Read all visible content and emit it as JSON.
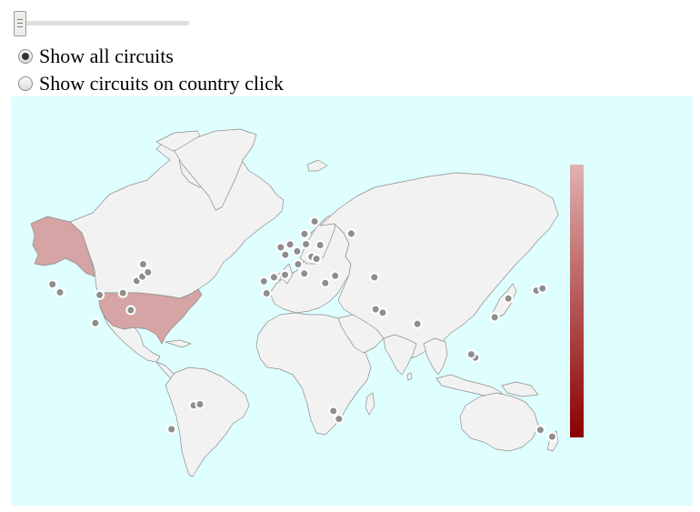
{
  "controls": {
    "slider_value": 0,
    "radios": [
      {
        "label": "Show all circuits",
        "checked": true
      },
      {
        "label": "Show circuits on country click",
        "checked": false
      }
    ]
  },
  "map": {
    "projection": "mercator",
    "ocean_color": "#dffefe",
    "land_color": "#f2f2f2",
    "highlighted_countries": [
      {
        "name": "United States",
        "color": "#d6a4a4"
      }
    ],
    "legend": {
      "from_color": "#e0b1b1",
      "to_color": "#8b0000",
      "orientation": "vertical"
    },
    "circuit_markers": [
      {
        "region": "USA West",
        "lon": -122,
        "lat": 37.5
      },
      {
        "region": "USA Los Angeles",
        "lon": -118,
        "lat": 34
      },
      {
        "region": "USA Dallas",
        "lon": -96.8,
        "lat": 32.8
      },
      {
        "region": "USA Atlanta",
        "lon": -84.4,
        "lat": 33.7
      },
      {
        "region": "USA Washington",
        "lon": -77,
        "lat": 38.9
      },
      {
        "region": "USA New York",
        "lon": -74,
        "lat": 40.7
      },
      {
        "region": "USA Boston",
        "lon": -71,
        "lat": 42.4
      },
      {
        "region": "Canada Montreal",
        "lon": -73.6,
        "lat": 45.5
      },
      {
        "region": "USA Miami",
        "lon": -80.2,
        "lat": 25.8
      },
      {
        "region": "Mexico City",
        "lon": -99.1,
        "lat": 19.4
      },
      {
        "region": "Brazil Sao Paulo",
        "lon": -46.6,
        "lat": -23.5
      },
      {
        "region": "Brazil Rio",
        "lon": -43.2,
        "lat": -22.9
      },
      {
        "region": "Argentina Buenos Aires",
        "lon": -58.4,
        "lat": -34.6
      },
      {
        "region": "UK London",
        "lon": -0.1,
        "lat": 51.5
      },
      {
        "region": "France Paris",
        "lon": 2.35,
        "lat": 48.9
      },
      {
        "region": "Netherlands",
        "lon": 4.9,
        "lat": 52.4
      },
      {
        "region": "Germany Frankfurt",
        "lon": 8.7,
        "lat": 50.1
      },
      {
        "region": "Germany Berlin",
        "lon": 13.4,
        "lat": 52.5
      },
      {
        "region": "Denmark",
        "lon": 12.6,
        "lat": 55.7
      },
      {
        "region": "Sweden",
        "lon": 18,
        "lat": 59.3
      },
      {
        "region": "Poland",
        "lon": 21,
        "lat": 52.2
      },
      {
        "region": "Italy Milan",
        "lon": 9.2,
        "lat": 45.5
      },
      {
        "region": "Italy Rome",
        "lon": 12.5,
        "lat": 41.9
      },
      {
        "region": "Spain Madrid",
        "lon": -3.7,
        "lat": 40.4
      },
      {
        "region": "Spain Barcelona",
        "lon": 2.2,
        "lat": 41.4
      },
      {
        "region": "Portugal Lisbon",
        "lon": -9.1,
        "lat": 38.7
      },
      {
        "region": "Morocco",
        "lon": -7.6,
        "lat": 33.6
      },
      {
        "region": "Austria",
        "lon": 16.4,
        "lat": 48.2
      },
      {
        "region": "Hungary",
        "lon": 19,
        "lat": 47.5
      },
      {
        "region": "Greece",
        "lon": 23.7,
        "lat": 38
      },
      {
        "region": "Turkey Istanbul",
        "lon": 29,
        "lat": 41
      },
      {
        "region": "Russia Moscow",
        "lon": 37.6,
        "lat": 55.8
      },
      {
        "region": "Azerbaijan",
        "lon": 49.9,
        "lat": 40.4
      },
      {
        "region": "Bahrain",
        "lon": 50.6,
        "lat": 26.2
      },
      {
        "region": "UAE Abu Dhabi",
        "lon": 54.4,
        "lat": 24.5
      },
      {
        "region": "India",
        "lon": 72.9,
        "lat": 19
      },
      {
        "region": "Singapore",
        "lon": 103.8,
        "lat": 1.35
      },
      {
        "region": "Malaysia",
        "lon": 101.7,
        "lat": 3.1
      },
      {
        "region": "China Shanghai",
        "lon": 121.5,
        "lat": 31.2
      },
      {
        "region": "China Hong Kong",
        "lon": 114.2,
        "lat": 22.3
      },
      {
        "region": "Japan Suzuka",
        "lon": 136.5,
        "lat": 34.8
      },
      {
        "region": "Japan Tokyo",
        "lon": 139.7,
        "lat": 35.7
      },
      {
        "region": "South Africa Johannesburg",
        "lon": 28,
        "lat": -26.2
      },
      {
        "region": "South Africa Durban",
        "lon": 31,
        "lat": -29.9
      },
      {
        "region": "Australia Melbourne",
        "lon": 144.9,
        "lat": -37.8
      },
      {
        "region": "Australia Adelaide",
        "lon": 138.6,
        "lat": -34.9
      }
    ]
  }
}
